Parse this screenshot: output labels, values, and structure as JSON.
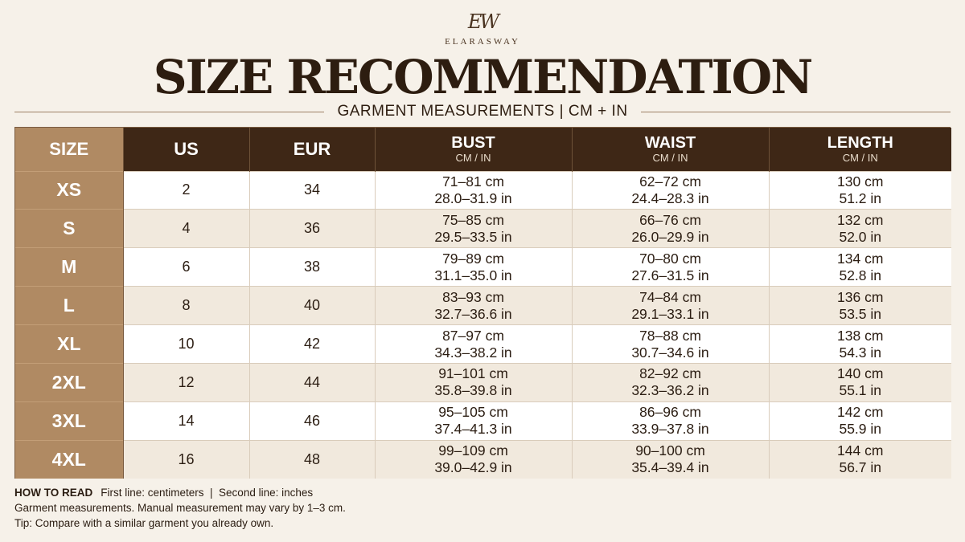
{
  "header": {
    "logo_mark": "EW",
    "brand": "ELARASWAY",
    "title": "SIZE RECOMMENDATION",
    "subtitle": "GARMENT MEASUREMENTS | CM + IN"
  },
  "table": {
    "columns": {
      "size": "SIZE",
      "us": "US",
      "eur": "EUR",
      "bust": "BUST",
      "bust_sub": "CM / IN",
      "waist": "WAIST",
      "waist_sub": "CM / IN",
      "length": "LENGTH",
      "length_sub": "CM / IN"
    },
    "rows": [
      {
        "size": "XS",
        "us": "2",
        "eur": "34",
        "bust_cm": "71–81 cm",
        "bust_in": "28.0–31.9 in",
        "waist_cm": "62–72 cm",
        "waist_in": "24.4–28.3 in",
        "length_cm": "130 cm",
        "length_in": "51.2 in"
      },
      {
        "size": "S",
        "us": "4",
        "eur": "36",
        "bust_cm": "75–85 cm",
        "bust_in": "29.5–33.5 in",
        "waist_cm": "66–76 cm",
        "waist_in": "26.0–29.9 in",
        "length_cm": "132 cm",
        "length_in": "52.0 in"
      },
      {
        "size": "M",
        "us": "6",
        "eur": "38",
        "bust_cm": "79–89 cm",
        "bust_in": "31.1–35.0 in",
        "waist_cm": "70–80 cm",
        "waist_in": "27.6–31.5 in",
        "length_cm": "134 cm",
        "length_in": "52.8 in"
      },
      {
        "size": "L",
        "us": "8",
        "eur": "40",
        "bust_cm": "83–93 cm",
        "bust_in": "32.7–36.6 in",
        "waist_cm": "74–84 cm",
        "waist_in": "29.1–33.1 in",
        "length_cm": "136 cm",
        "length_in": "53.5 in"
      },
      {
        "size": "XL",
        "us": "10",
        "eur": "42",
        "bust_cm": "87–97 cm",
        "bust_in": "34.3–38.2 in",
        "waist_cm": "78–88 cm",
        "waist_in": "30.7–34.6 in",
        "length_cm": "138 cm",
        "length_in": "54.3 in"
      },
      {
        "size": "2XL",
        "us": "12",
        "eur": "44",
        "bust_cm": "91–101 cm",
        "bust_in": "35.8–39.8 in",
        "waist_cm": "82–92 cm",
        "waist_in": "32.3–36.2 in",
        "length_cm": "140 cm",
        "length_in": "55.1 in"
      },
      {
        "size": "3XL",
        "us": "14",
        "eur": "46",
        "bust_cm": "95–105 cm",
        "bust_in": "37.4–41.3 in",
        "waist_cm": "86–96 cm",
        "waist_in": "33.9–37.8 in",
        "length_cm": "142 cm",
        "length_in": "55.9 in"
      },
      {
        "size": "4XL",
        "us": "16",
        "eur": "48",
        "bust_cm": "99–109 cm",
        "bust_in": "39.0–42.9 in",
        "waist_cm": "90–100 cm",
        "waist_in": "35.4–39.4 in",
        "length_cm": "144 cm",
        "length_in": "56.7 in"
      }
    ]
  },
  "notes": {
    "how_label": "HOW TO READ",
    "how_text": "First line: centimeters  |  Second line: inches",
    "line2": "Garment measurements. Manual measurement may vary by 1–3 cm.",
    "line3": "Tip: Compare with a similar garment you already own."
  },
  "colors": {
    "background": "#f6f1e9",
    "header_dark": "#3e2716",
    "size_column": "#b08a63",
    "row_alt": "#f1e9dd"
  }
}
